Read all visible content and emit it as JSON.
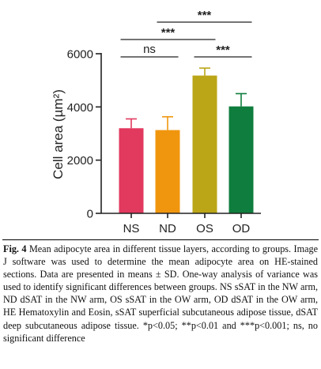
{
  "chart_data": {
    "type": "bar",
    "categories": [
      "NS",
      "ND",
      "OS",
      "OD"
    ],
    "values": [
      3200,
      3130,
      5180,
      4020
    ],
    "errors": [
      350,
      500,
      280,
      480
    ],
    "colors": [
      "#e2395f",
      "#f0960e",
      "#bba618",
      "#0f7d3d"
    ],
    "ylabel": "Cell area (µm²)",
    "ylim": [
      0,
      6000
    ],
    "yticks": [
      "0",
      "2000",
      "4000",
      "6000"
    ],
    "significance": [
      {
        "from": 0,
        "to": 1,
        "label": "ns"
      },
      {
        "from": 0,
        "to": 2,
        "label": "***"
      },
      {
        "from": 2,
        "to": 3,
        "label": "***"
      },
      {
        "from": 1,
        "to": 3,
        "label": "***"
      }
    ]
  },
  "caption": {
    "fig_label": "Fig. 4",
    "text": "Mean adipocyte area in different tissue layers, according to groups. Image J software was used to determine the mean adipocyte area on HE-stained sections. Data are presented in means ± SD. One-way analysis of variance was used to identify significant differences between groups. NS sSAT in the NW arm, ND dSAT in the NW arm, OS sSAT in the OW arm, OD dSAT in the OW arm, HE Hematoxylin and Eosin, sSAT superficial subcutaneous adipose tissue, dSAT deep subcutaneous adipose tissue. *p<0.05; **p<0.01 and ***p<0.001; ns, no significant difference"
  }
}
